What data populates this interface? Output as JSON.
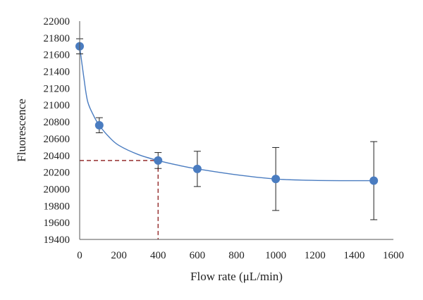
{
  "chart_data": {
    "type": "scatter",
    "xlabel": "Flow rate (μL/min)",
    "ylabel": "Fluorescence",
    "xlim": [
      0,
      1600
    ],
    "ylim": [
      19400,
      22000
    ],
    "x_ticks": [
      0,
      200,
      400,
      600,
      800,
      1000,
      1200,
      1400,
      1600
    ],
    "y_ticks": [
      19400,
      19600,
      19800,
      20000,
      20200,
      20400,
      20600,
      20800,
      21000,
      21200,
      21400,
      21600,
      21800,
      22000
    ],
    "grid": false,
    "series": [
      {
        "x": [
          0,
          100,
          400,
          600,
          1000,
          1500
        ],
        "y": [
          21700,
          20760,
          20340,
          20240,
          20120,
          20100
        ],
        "error": [
          90,
          90,
          95,
          210,
          375,
          465
        ]
      }
    ],
    "fit_curve": {
      "x": [
        0,
        20,
        40,
        70,
        100,
        150,
        200,
        300,
        400,
        500,
        600,
        800,
        1000,
        1200,
        1400,
        1500
      ],
      "y": [
        21700,
        21350,
        21050,
        20880,
        20760,
        20620,
        20520,
        20410,
        20340,
        20285,
        20240,
        20170,
        20120,
        20103,
        20100,
        20100
      ]
    },
    "reference_lines": {
      "x": 400,
      "y": 20340
    },
    "colors": {
      "marker": "#4a7cc0",
      "curve": "#4a7cc0",
      "error_bar": "#222222",
      "reference": "#8b1a1a",
      "axis": "#555555"
    }
  }
}
